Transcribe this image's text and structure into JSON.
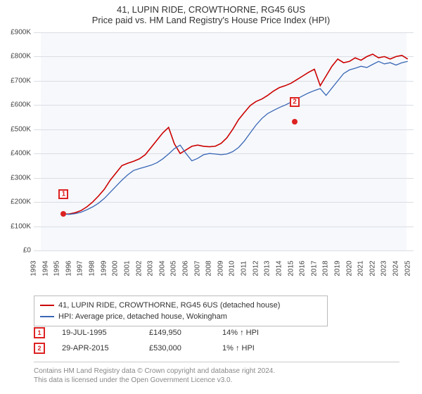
{
  "title": "41, LUPIN RIDE, CROWTHORNE, RG45 6US",
  "subtitle": "Price paid vs. HM Land Registry's House Price Index (HPI)",
  "chart": {
    "type": "line",
    "background_color": "#f6f8fc",
    "grid_color": "#d9dde3",
    "ylim": [
      0,
      900000
    ],
    "ytick_step": 100000,
    "y_ticks": [
      "£0",
      "£100K",
      "£200K",
      "£300K",
      "£400K",
      "£500K",
      "£600K",
      "£700K",
      "£800K",
      "£900K"
    ],
    "x_years": [
      1993,
      1994,
      1995,
      1996,
      1997,
      1998,
      1999,
      2000,
      2001,
      2002,
      2003,
      2004,
      2005,
      2006,
      2007,
      2008,
      2009,
      2010,
      2011,
      2012,
      2013,
      2014,
      2015,
      2016,
      2017,
      2018,
      2019,
      2020,
      2021,
      2022,
      2023,
      2024,
      2025
    ],
    "series": [
      {
        "name": "property",
        "label": "41, LUPIN RIDE, CROWTHORNE, RG45 6US (detached house)",
        "color": "#cc0000",
        "line_width": 1.6,
        "start_year": 1995.55,
        "points_kGBP": [
          150,
          151,
          156,
          165,
          180,
          200,
          225,
          253,
          290,
          320,
          350,
          360,
          368,
          378,
          395,
          425,
          455,
          485,
          508,
          440,
          400,
          415,
          430,
          435,
          430,
          428,
          430,
          442,
          465,
          500,
          540,
          570,
          598,
          615,
          625,
          640,
          658,
          672,
          680,
          690,
          705,
          720,
          735,
          748,
          680,
          720,
          760,
          790,
          775,
          780,
          795,
          785,
          800,
          810,
          795,
          800,
          790,
          800,
          805,
          790
        ]
      },
      {
        "name": "hpi",
        "label": "HPI: Average price, detached house, Wokingham",
        "color": "#3a67b5",
        "line_width": 1.3,
        "start_year": 1995.55,
        "points_kGBP": [
          150,
          149,
          152,
          158,
          168,
          180,
          195,
          215,
          240,
          265,
          290,
          312,
          330,
          338,
          345,
          352,
          362,
          378,
          398,
          420,
          435,
          400,
          370,
          380,
          395,
          400,
          398,
          395,
          398,
          408,
          425,
          452,
          485,
          518,
          545,
          565,
          578,
          590,
          600,
          612,
          625,
          638,
          650,
          660,
          668,
          640,
          670,
          700,
          730,
          745,
          752,
          760,
          755,
          768,
          780,
          770,
          775,
          765,
          775,
          780
        ]
      }
    ],
    "transactions": [
      {
        "n": "1",
        "year": 1995.55,
        "price_k": 150,
        "label_offset_y": -28
      },
      {
        "n": "2",
        "year": 2015.33,
        "price_k": 530,
        "label_offset_y": -28
      }
    ]
  },
  "legend": {
    "items": [
      {
        "color": "#cc0000",
        "label": "41, LUPIN RIDE, CROWTHORNE, RG45 6US (detached house)"
      },
      {
        "color": "#3a67b5",
        "label": "HPI: Average price, detached house, Wokingham"
      }
    ]
  },
  "tx_rows": [
    {
      "n": "1",
      "date": "19-JUL-1995",
      "price": "£149,950",
      "delta": "14% ↑ HPI"
    },
    {
      "n": "2",
      "date": "29-APR-2015",
      "price": "£530,000",
      "delta": "1% ↑ HPI"
    }
  ],
  "footer_line1": "Contains HM Land Registry data © Crown copyright and database right 2024.",
  "footer_line2": "This data is licensed under the Open Government Licence v3.0."
}
